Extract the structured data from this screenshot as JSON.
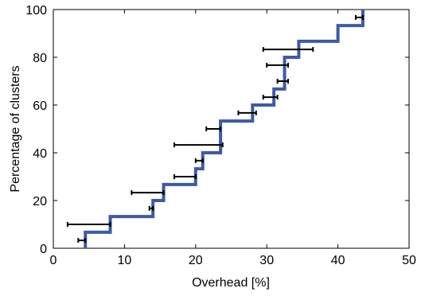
{
  "chart_data": {
    "type": "line",
    "title": "",
    "xlabel": "Overhead [%]",
    "ylabel": "Percentage of clusters",
    "xlim": [
      0,
      50
    ],
    "ylim": [
      0,
      100
    ],
    "xticks": [
      0,
      10,
      20,
      30,
      40,
      50
    ],
    "yticks": [
      0,
      20,
      40,
      60,
      80,
      100
    ],
    "grid": false,
    "legend": "none",
    "series": [
      {
        "style": "step",
        "color": "#3d5aa6",
        "x": [
          4.5,
          8,
          14,
          15.5,
          20,
          21,
          23.5,
          28,
          31,
          32.5,
          34.5,
          40,
          43.5
        ],
        "y": [
          6.7,
          13.3,
          20,
          26.7,
          33.3,
          40,
          53.3,
          60,
          66.7,
          80,
          86.7,
          93.3,
          100
        ]
      }
    ],
    "error_bars": {
      "color": "#000000",
      "items": [
        {
          "y": 3.3,
          "xmin": 3.5,
          "xmax": 4.5
        },
        {
          "y": 10.0,
          "xmin": 2.0,
          "xmax": 8.0
        },
        {
          "y": 16.7,
          "xmin": 13.5,
          "xmax": 14.0
        },
        {
          "y": 23.3,
          "xmin": 11.0,
          "xmax": 15.5
        },
        {
          "y": 30.0,
          "xmin": 17.0,
          "xmax": 20.0
        },
        {
          "y": 36.7,
          "xmin": 20.0,
          "xmax": 21.0
        },
        {
          "y": 43.3,
          "xmin": 17.0,
          "xmax": 23.8
        },
        {
          "y": 50.0,
          "xmin": 21.5,
          "xmax": 23.5
        },
        {
          "y": 56.7,
          "xmin": 26.0,
          "xmax": 28.5
        },
        {
          "y": 63.3,
          "xmin": 29.5,
          "xmax": 31.5
        },
        {
          "y": 70.0,
          "xmin": 31.5,
          "xmax": 33.0
        },
        {
          "y": 76.7,
          "xmin": 30.0,
          "xmax": 33.0
        },
        {
          "y": 83.3,
          "xmin": 29.5,
          "xmax": 36.5
        },
        {
          "y": 96.7,
          "xmin": 42.5,
          "xmax": 43.5
        }
      ]
    }
  }
}
